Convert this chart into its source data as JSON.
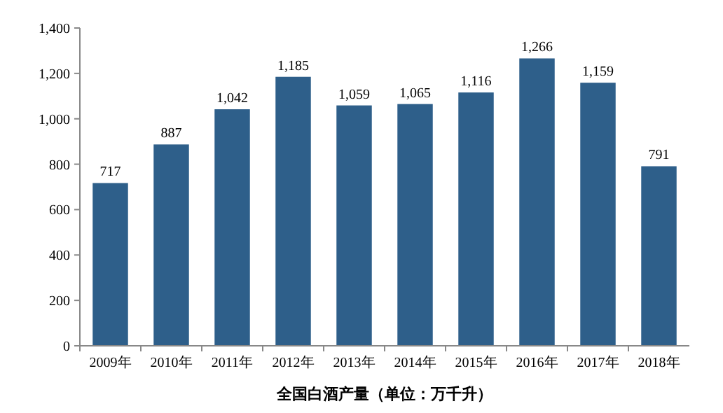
{
  "chart_data": {
    "type": "bar",
    "xlabel": "全国白酒产量（单位：万千升）",
    "categories": [
      "2009年",
      "2010年",
      "2011年",
      "2012年",
      "2013年",
      "2014年",
      "2015年",
      "2016年",
      "2017年",
      "2018年"
    ],
    "values": [
      717,
      887,
      1042,
      1185,
      1059,
      1065,
      1116,
      1266,
      1159,
      791
    ],
    "value_labels": [
      "717",
      "887",
      "1,042",
      "1,185",
      "1,059",
      "1,065",
      "1,116",
      "1,266",
      "1,159",
      "791"
    ],
    "color": "#2e5f8a",
    "ylim": [
      0,
      1400
    ],
    "yticks": [
      {
        "value": 0,
        "label": "0"
      },
      {
        "value": 200,
        "label": "200"
      },
      {
        "value": 400,
        "label": "400"
      },
      {
        "value": 600,
        "label": "600"
      },
      {
        "value": 800,
        "label": "800"
      },
      {
        "value": 1000,
        "label": "1,000"
      },
      {
        "value": 1200,
        "label": "1,200"
      },
      {
        "value": 1400,
        "label": "1,400"
      }
    ],
    "grid": false
  }
}
